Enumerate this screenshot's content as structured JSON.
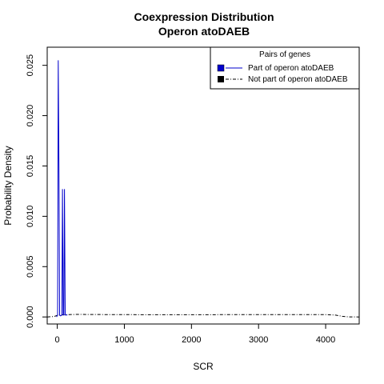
{
  "chart_data": {
    "type": "line",
    "title": "Coexpression Distribution",
    "subtitle": "Operon atoDAEB",
    "xlabel": "SCR",
    "ylabel": "Probability Density",
    "xlim": [
      -150,
      4500
    ],
    "ylim": [
      -0.0007,
      0.0268
    ],
    "x_ticks": [
      0,
      1000,
      2000,
      3000,
      4000
    ],
    "y_ticks": [
      0.0,
      0.005,
      0.01,
      0.015,
      0.02,
      0.025
    ],
    "x_tick_labels": [
      "0",
      "1000",
      "2000",
      "3000",
      "4000"
    ],
    "y_tick_labels": [
      "0.000",
      "0.005",
      "0.010",
      "0.015",
      "0.020",
      "0.025"
    ],
    "grid": false,
    "legend": {
      "title": "Pairs of genes",
      "placement": "top-right",
      "entries": [
        {
          "label": "Part of operon atoDAEB",
          "color": "#0000cc",
          "line": "solid"
        },
        {
          "label": "Not part of operon atoDAEB",
          "color": "#000000",
          "line": "dashed"
        }
      ]
    },
    "series": [
      {
        "name": "Part of operon atoDAEB",
        "color": "#0000cc",
        "line": "solid",
        "points": [
          [
            -10,
            0.0
          ],
          [
            5,
            0.0002
          ],
          [
            15,
            0.0255
          ],
          [
            25,
            0.015
          ],
          [
            35,
            0.0002
          ],
          [
            50,
            0.0001
          ],
          [
            68,
            0.0002
          ],
          [
            78,
            0.0127
          ],
          [
            88,
            0.0002
          ],
          [
            98,
            0.0002
          ],
          [
            108,
            0.0127
          ],
          [
            118,
            0.0002
          ],
          [
            150,
            0.0002
          ]
        ]
      },
      {
        "name": "Not part of operon atoDAEB",
        "color": "#000000",
        "line": "dashed",
        "points": [
          [
            -150,
            0.0
          ],
          [
            -50,
            5e-05
          ],
          [
            0,
            0.00015
          ],
          [
            100,
            0.00022
          ],
          [
            300,
            0.00025
          ],
          [
            700,
            0.00024
          ],
          [
            1500,
            0.00022
          ],
          [
            2500,
            0.00023
          ],
          [
            3500,
            0.00024
          ],
          [
            4000,
            0.00024
          ],
          [
            4150,
            0.00018
          ],
          [
            4250,
            6e-05
          ],
          [
            4350,
            1e-05
          ],
          [
            4500,
            0.0
          ]
        ]
      }
    ]
  }
}
